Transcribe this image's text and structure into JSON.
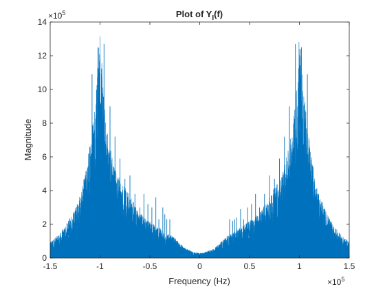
{
  "chart_data": {
    "type": "line",
    "title": "Plot of Y",
    "title_subscript": "I",
    "title_suffix": "(f)",
    "xlabel": "Frequency (Hz)",
    "ylabel": "Magnitude",
    "xlim": [
      -150000,
      150000
    ],
    "ylim": [
      0,
      1400000
    ],
    "x_ticks": [
      -1.5,
      -1,
      -0.5,
      0,
      0.5,
      1,
      1.5
    ],
    "x_tick_labels": [
      "-1.5",
      "-1",
      "-0.5",
      "0",
      "0.5",
      "1",
      "1.5"
    ],
    "x_multiplier": "×10",
    "x_multiplier_exp": "5",
    "y_ticks": [
      0,
      2,
      4,
      6,
      8,
      10,
      12,
      14
    ],
    "y_tick_labels": [
      "0",
      "2",
      "4",
      "6",
      "8",
      "10",
      "12",
      "14"
    ],
    "y_multiplier": "×10",
    "y_multiplier_exp": "5",
    "grid": false,
    "line_color": "#0072BD",
    "series": [
      {
        "envelope_x": [
          -150000,
          -145000,
          -140000,
          -135000,
          -130000,
          -125000,
          -120000,
          -115000,
          -112000,
          -108000,
          -105000,
          -103000,
          -101000,
          -100000,
          -99000,
          -97000,
          -95000,
          -92000,
          -88000,
          -84000,
          -80000,
          -75000,
          -70000,
          -65000,
          -60000,
          -55000,
          -50000,
          -45000,
          -40000,
          -35000,
          -30000,
          -25000,
          -20000,
          -15000,
          -10000,
          -5000,
          0,
          5000,
          10000,
          15000,
          20000,
          25000,
          30000,
          35000,
          40000,
          45000,
          50000,
          55000,
          60000,
          65000,
          70000,
          75000,
          80000,
          84000,
          88000,
          92000,
          95000,
          97000,
          99000,
          100000,
          101000,
          103000,
          105000,
          108000,
          112000,
          115000,
          120000,
          125000,
          130000,
          135000,
          140000,
          145000,
          150000
        ],
        "envelope_y": [
          100000,
          120000,
          150000,
          190000,
          240000,
          300000,
          380000,
          500000,
          620000,
          800000,
          960000,
          1120000,
          1300000,
          1400000,
          1240000,
          1050000,
          880000,
          740000,
          620000,
          530000,
          470000,
          420000,
          370000,
          320000,
          270000,
          240000,
          220000,
          200000,
          180000,
          150000,
          140000,
          120000,
          90000,
          60000,
          45000,
          35000,
          30000,
          35000,
          45000,
          60000,
          90000,
          120000,
          140000,
          160000,
          180000,
          200000,
          220000,
          240000,
          270000,
          320000,
          370000,
          420000,
          470000,
          530000,
          620000,
          740000,
          880000,
          1050000,
          1240000,
          1400000,
          1300000,
          1120000,
          960000,
          800000,
          620000,
          500000,
          380000,
          300000,
          240000,
          190000,
          150000,
          120000,
          100000
        ],
        "spikes_x": [
          -108000,
          -102000,
          -96000,
          -90000,
          -85000,
          -80000,
          -75000,
          -72000,
          -70000,
          -65000,
          -60000,
          -56000,
          -52000,
          -48000,
          -44000,
          -41000,
          -37000,
          -35000,
          -33000,
          -30000,
          30000,
          33000,
          35000,
          37000,
          41000,
          44000,
          48000,
          52000,
          56000,
          60000,
          65000,
          70000,
          72000,
          75000,
          80000,
          85000,
          90000,
          96000,
          102000,
          108000
        ],
        "spikes_y": [
          1090000,
          1250000,
          1270000,
          900000,
          720000,
          590000,
          470000,
          330000,
          490000,
          380000,
          300000,
          380000,
          320000,
          300000,
          360000,
          230000,
          300000,
          260000,
          230000,
          230000,
          230000,
          220000,
          230000,
          240000,
          290000,
          230000,
          300000,
          320000,
          380000,
          300000,
          380000,
          490000,
          330000,
          470000,
          590000,
          720000,
          900000,
          1270000,
          1250000,
          1090000
        ]
      }
    ]
  }
}
